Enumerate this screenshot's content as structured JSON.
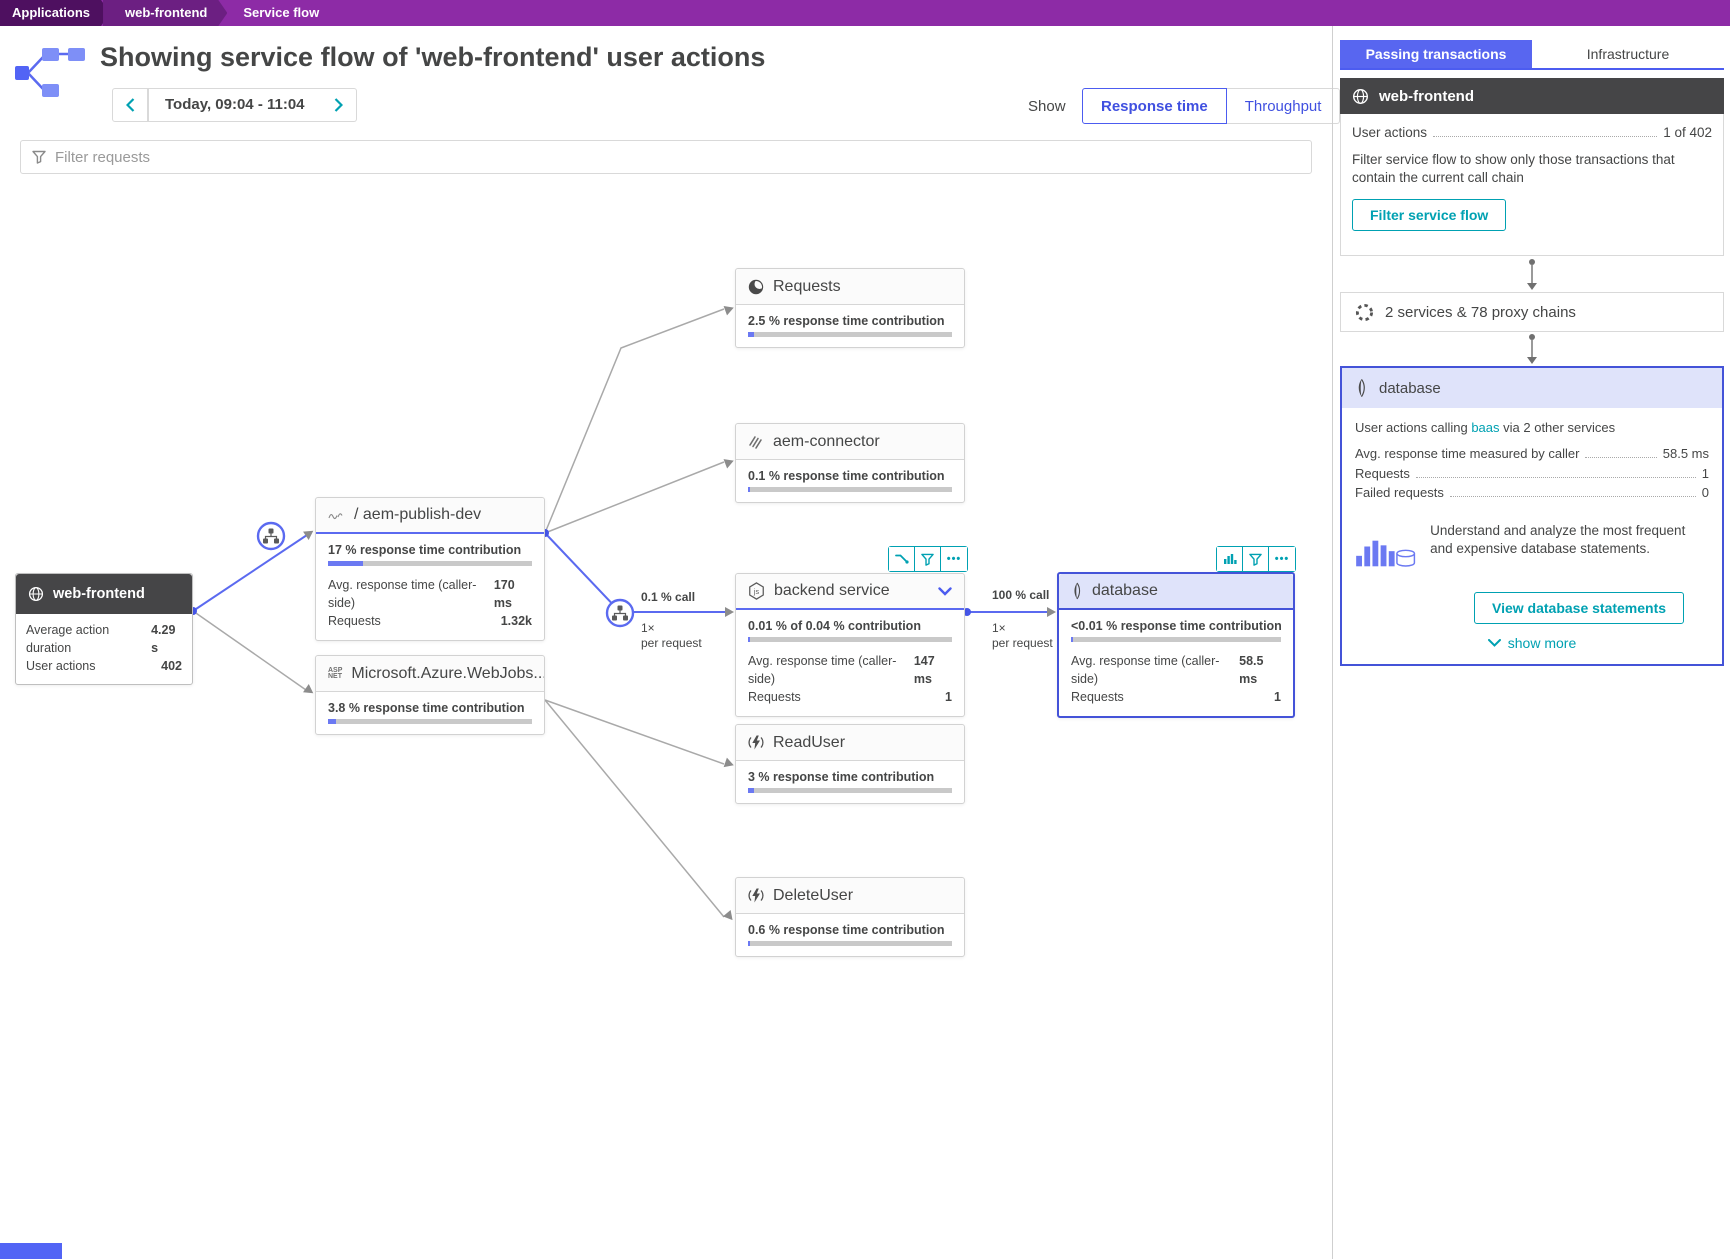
{
  "breadcrumb": {
    "items": [
      {
        "label": "Applications"
      },
      {
        "label": "web-frontend"
      },
      {
        "label": "Service flow"
      }
    ]
  },
  "header": {
    "title": "Showing service flow of 'web-frontend' user actions",
    "time_range": "Today, 09:04 - 11:04",
    "show_label": "Show",
    "response_time_label": "Response time",
    "throughput_label": "Throughput"
  },
  "filter": {
    "placeholder": "Filter requests"
  },
  "icons": {
    "ellipsis": "•••",
    "nodejs": "js",
    "aspnet_top": "ASP",
    "aspnet_bottom": "NET"
  },
  "diagram": {
    "nodes": {
      "web_frontend": {
        "title": "web-frontend",
        "rows": [
          {
            "label": "Average action duration",
            "value": "4.29 s"
          },
          {
            "label": "User actions",
            "value": "402"
          }
        ]
      },
      "aem_publish": {
        "title": "/ aem-publish-dev",
        "contribution": "17 % response time contribution",
        "bar_pct": 17,
        "rows": [
          {
            "label": "Avg. response time (caller-side)",
            "value": "170 ms"
          },
          {
            "label": "Requests",
            "value": "1.32k"
          }
        ]
      },
      "azure_webjobs": {
        "title": "Microsoft.Azure.WebJobs....",
        "contribution": "3.8 % response time contribution",
        "bar_pct": 4
      },
      "requests": {
        "title": "Requests",
        "contribution": "2.5 % response time contribution",
        "bar_pct": 3
      },
      "aem_connector": {
        "title": "aem-connector",
        "contribution": "0.1 % response time contribution",
        "bar_pct": 1
      },
      "backend_service": {
        "title": "backend service",
        "contribution": "0.01 % of 0.04 % contribution",
        "bar_pct": 0.5,
        "rows": [
          {
            "label": "Avg. response time (caller-side)",
            "value": "147 ms"
          },
          {
            "label": "Requests",
            "value": "1"
          }
        ]
      },
      "database": {
        "title": "database",
        "contribution": "<0.01 % response time contribution",
        "bar_pct": 0.5,
        "rows": [
          {
            "label": "Avg. response time (caller-side)",
            "value": "58.5 ms"
          },
          {
            "label": "Requests",
            "value": "1"
          }
        ]
      },
      "read_user": {
        "title": "ReadUser",
        "contribution": "3 % response time contribution",
        "bar_pct": 3
      },
      "delete_user": {
        "title": "DeleteUser",
        "contribution": "0.6 % response time contribution",
        "bar_pct": 1
      }
    },
    "edge_labels": {
      "backend_pct": "0.1 % call",
      "backend_freq": "1×",
      "backend_unit": "per request",
      "db_pct": "100 % call",
      "db_freq": "1×",
      "db_unit": "per request"
    }
  },
  "sidebar": {
    "tabs": [
      {
        "label": "Passing transactions"
      },
      {
        "label": "Infrastructure"
      }
    ],
    "web_frontend_card": {
      "title": "web-frontend",
      "row_label": "User actions",
      "row_value": "1 of 402",
      "description": "Filter service flow to show only those transactions that contain the current call chain",
      "button": "Filter service flow"
    },
    "proxy_box": "2 services & 78 proxy chains",
    "database_card": {
      "title": "database",
      "subtitle_prefix": "User actions calling ",
      "subtitle_link": "baas",
      "subtitle_suffix": " via 2 other services",
      "rows": [
        {
          "label": "Avg. response time measured by caller",
          "value": "58.5 ms"
        },
        {
          "label": "Requests",
          "value": "1"
        },
        {
          "label": "Failed requests",
          "value": "0"
        }
      ],
      "promo": "Understand and analyze the most frequent and expensive database statements.",
      "button": "View database statements",
      "show_more": "show more"
    }
  },
  "colors": {
    "accent_blue": "#4c5cf0",
    "flow_blue": "#5b6af0",
    "teal": "#00a1b2",
    "purple": "#8d2ba6"
  }
}
